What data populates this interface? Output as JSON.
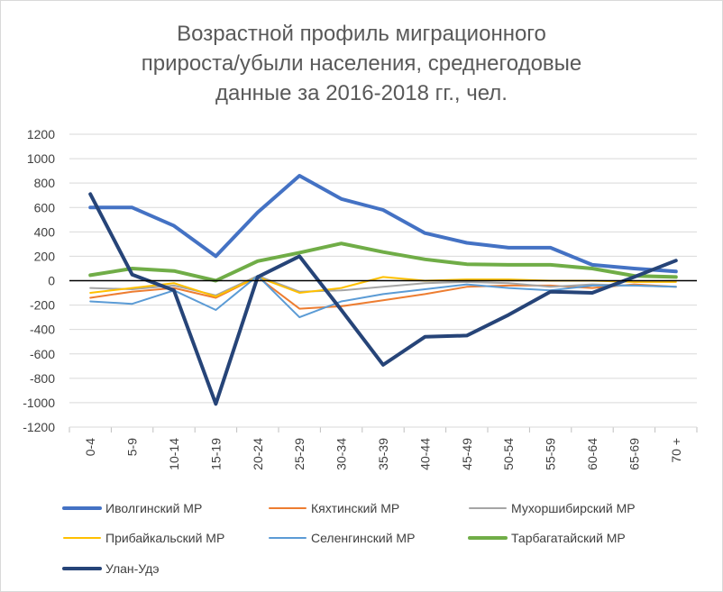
{
  "chart_data": {
    "type": "line",
    "title": "Возрастной профиль миграционного прироста/убыли населения, среднегодовые данные за 2016-2018 гг., чел.",
    "title_lines": [
      "Возрастной профиль миграционного",
      "прироста/убыли населения, среднегодовые",
      "данные за 2016-2018 гг., чел."
    ],
    "xlabel": "",
    "ylabel": "",
    "ylim": [
      -1200,
      1200
    ],
    "yticks": [
      1200,
      1000,
      800,
      600,
      400,
      200,
      0,
      -200,
      -400,
      -600,
      -800,
      -1000,
      -1200
    ],
    "categories": [
      "0-4",
      "5-9",
      "10-14",
      "15-19",
      "20-24",
      "25-29",
      "30-34",
      "35-39",
      "40-44",
      "45-49",
      "50-54",
      "55-59",
      "60-64",
      "65-69",
      "70 +"
    ],
    "grid": "horizontal",
    "legend": "bottom",
    "series": [
      {
        "name": "Иволгинский МР",
        "color": "#4472c4",
        "width": 4,
        "values": [
          600,
          600,
          450,
          200,
          560,
          860,
          670,
          580,
          390,
          310,
          270,
          270,
          130,
          100,
          75
        ]
      },
      {
        "name": "Кяхтинский МР",
        "color": "#ed7d31",
        "width": 2,
        "values": [
          -140,
          -90,
          -60,
          -140,
          30,
          -230,
          -210,
          -160,
          -110,
          -50,
          -40,
          -40,
          -60,
          -30,
          -50
        ]
      },
      {
        "name": "Мухоршибирский МР",
        "color": "#a5a5a5",
        "width": 2,
        "values": [
          -60,
          -70,
          -40,
          -120,
          40,
          -90,
          -80,
          -50,
          -20,
          -10,
          -20,
          -50,
          -30,
          -40,
          -50
        ]
      },
      {
        "name": "Прибайкальский МР",
        "color": "#ffc000",
        "width": 2,
        "values": [
          -100,
          -60,
          -20,
          -130,
          30,
          -100,
          -60,
          30,
          0,
          10,
          10,
          0,
          0,
          -10,
          -10
        ]
      },
      {
        "name": "Селенгинский МР",
        "color": "#5b9bd5",
        "width": 2,
        "values": [
          -170,
          -190,
          -80,
          -240,
          40,
          -300,
          -170,
          -110,
          -70,
          -30,
          -60,
          -80,
          -40,
          -40,
          -50
        ]
      },
      {
        "name": "Тарбагатайский МР",
        "color": "#70ad47",
        "width": 4,
        "values": [
          45,
          100,
          80,
          0,
          160,
          230,
          305,
          235,
          175,
          135,
          130,
          130,
          100,
          40,
          30
        ]
      },
      {
        "name": "Улан-Удэ",
        "color": "#264478",
        "width": 4,
        "values": [
          710,
          50,
          -80,
          -1010,
          30,
          200,
          -240,
          -690,
          -460,
          -450,
          -280,
          -90,
          -100,
          30,
          165
        ]
      }
    ]
  }
}
